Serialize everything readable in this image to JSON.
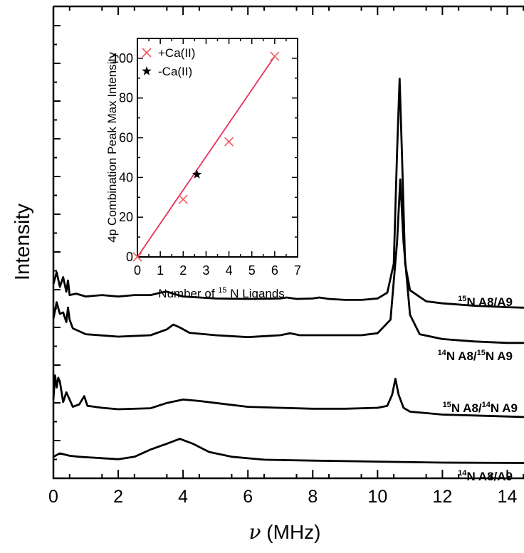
{
  "chart_data": [
    {
      "type": "line",
      "title": "",
      "xlabel_symbol": "ν",
      "xlabel_unit": "(MHz)",
      "ylabel": "Intensity",
      "xlim": [
        0,
        15
      ],
      "x_ticks": [
        0,
        2,
        4,
        6,
        8,
        10,
        12,
        14
      ],
      "y_ticklabels_shown": false,
      "grid": false,
      "series": [
        {
          "label_iso_a": "15",
          "label_text_a": "N A8/A9",
          "label_iso_b": "",
          "label_text_b": "",
          "offset": 3,
          "points": [
            [
              0,
              0.78
            ],
            [
              0.1,
              1.02
            ],
            [
              0.2,
              0.72
            ],
            [
              0.3,
              0.92
            ],
            [
              0.4,
              0.62
            ],
            [
              0.45,
              0.85
            ],
            [
              0.5,
              0.55
            ],
            [
              0.7,
              0.58
            ],
            [
              1,
              0.52
            ],
            [
              1.5,
              0.55
            ],
            [
              2,
              0.52
            ],
            [
              2.5,
              0.55
            ],
            [
              3,
              0.55
            ],
            [
              3.3,
              0.6
            ],
            [
              3.5,
              0.62
            ],
            [
              3.7,
              0.58
            ],
            [
              4,
              0.52
            ],
            [
              4.5,
              0.5
            ],
            [
              5,
              0.48
            ],
            [
              6,
              0.47
            ],
            [
              7,
              0.48
            ],
            [
              7.2,
              0.5
            ],
            [
              7.5,
              0.47
            ],
            [
              8,
              0.48
            ],
            [
              8.2,
              0.5
            ],
            [
              8.5,
              0.47
            ],
            [
              9,
              0.45
            ],
            [
              9.5,
              0.45
            ],
            [
              10,
              0.48
            ],
            [
              10.3,
              0.6
            ],
            [
              10.5,
              1.2
            ],
            [
              10.6,
              3.5
            ],
            [
              10.68,
              5.02
            ],
            [
              10.75,
              3.5
            ],
            [
              10.85,
              1.2
            ],
            [
              11,
              0.65
            ],
            [
              11.5,
              0.42
            ],
            [
              12,
              0.38
            ],
            [
              13,
              0.33
            ],
            [
              14,
              0.3
            ],
            [
              15,
              0.28
            ]
          ]
        },
        {
          "label_iso_a": "14",
          "label_text_a": "N A8/",
          "label_iso_b": "15",
          "label_text_b": "N A9",
          "offset": 2,
          "points": [
            [
              0,
              0.62
            ],
            [
              0.1,
              0.96
            ],
            [
              0.2,
              0.72
            ],
            [
              0.3,
              0.75
            ],
            [
              0.4,
              0.55
            ],
            [
              0.45,
              0.85
            ],
            [
              0.5,
              0.6
            ],
            [
              0.6,
              0.42
            ],
            [
              1,
              0.3
            ],
            [
              2,
              0.25
            ],
            [
              3,
              0.28
            ],
            [
              3.5,
              0.4
            ],
            [
              3.7,
              0.5
            ],
            [
              3.9,
              0.44
            ],
            [
              4.2,
              0.33
            ],
            [
              5,
              0.28
            ],
            [
              6,
              0.24
            ],
            [
              7,
              0.28
            ],
            [
              7.3,
              0.32
            ],
            [
              7.6,
              0.28
            ],
            [
              8.5,
              0.28
            ],
            [
              9.5,
              0.28
            ],
            [
              10,
              0.32
            ],
            [
              10.4,
              0.6
            ],
            [
              10.6,
              2.2
            ],
            [
              10.7,
              3.5
            ],
            [
              10.8,
              2.2
            ],
            [
              11,
              0.7
            ],
            [
              11.3,
              0.3
            ],
            [
              12,
              0.2
            ],
            [
              13,
              0.15
            ],
            [
              14,
              0.12
            ],
            [
              15,
              0.12
            ]
          ]
        },
        {
          "label_iso_a": "15",
          "label_text_a": "N A8/",
          "label_iso_b": "14",
          "label_text_b": "N A9",
          "offset": 1,
          "points": [
            [
              0,
              0.45
            ],
            [
              0.05,
              0.95
            ],
            [
              0.1,
              0.7
            ],
            [
              0.15,
              0.9
            ],
            [
              0.2,
              0.82
            ],
            [
              0.3,
              0.4
            ],
            [
              0.4,
              0.6
            ],
            [
              0.5,
              0.45
            ],
            [
              0.6,
              0.3
            ],
            [
              0.8,
              0.35
            ],
            [
              0.95,
              0.52
            ],
            [
              1.05,
              0.32
            ],
            [
              1.5,
              0.28
            ],
            [
              2,
              0.25
            ],
            [
              3,
              0.27
            ],
            [
              3.5,
              0.38
            ],
            [
              4,
              0.45
            ],
            [
              4.5,
              0.42
            ],
            [
              5,
              0.38
            ],
            [
              6,
              0.3
            ],
            [
              7,
              0.28
            ],
            [
              8,
              0.26
            ],
            [
              9,
              0.26
            ],
            [
              10,
              0.28
            ],
            [
              10.3,
              0.32
            ],
            [
              10.45,
              0.55
            ],
            [
              10.55,
              0.88
            ],
            [
              10.65,
              0.55
            ],
            [
              10.8,
              0.28
            ],
            [
              11,
              0.2
            ],
            [
              12,
              0.14
            ],
            [
              13,
              0.12
            ],
            [
              14,
              0.1
            ],
            [
              15,
              0.08
            ]
          ]
        },
        {
          "label_iso_a": "14",
          "label_text_a": "N A8/A9",
          "label_iso_b": "",
          "label_text_b": "",
          "offset": 0,
          "points": [
            [
              0,
              0.15
            ],
            [
              0.2,
              0.22
            ],
            [
              0.5,
              0.17
            ],
            [
              0.8,
              0.15
            ],
            [
              1.5,
              0.12
            ],
            [
              2,
              0.1
            ],
            [
              2.5,
              0.15
            ],
            [
              3,
              0.3
            ],
            [
              3.5,
              0.42
            ],
            [
              3.9,
              0.52
            ],
            [
              4.3,
              0.42
            ],
            [
              4.8,
              0.25
            ],
            [
              5.5,
              0.15
            ],
            [
              6.5,
              0.09
            ],
            [
              8,
              0.07
            ],
            [
              10,
              0.05
            ],
            [
              12,
              0.03
            ],
            [
              15,
              0.02
            ]
          ]
        }
      ]
    },
    {
      "type": "scatter",
      "title": "",
      "xlabel_prefix": "Number of ",
      "xlabel_iso": "15",
      "xlabel_suffix": " N Ligands",
      "ylabel": "4p Combination Peak Max Intensity",
      "xlim": [
        0,
        7
      ],
      "ylim": [
        0,
        110
      ],
      "x_ticks": [
        0,
        1,
        2,
        3,
        4,
        5,
        6,
        7
      ],
      "y_ticks": [
        0,
        20,
        40,
        60,
        80,
        100
      ],
      "legend_position": "top-left",
      "series": [
        {
          "name": "+Ca(II)",
          "marker": "x",
          "color": "#f25c5c",
          "x": [
            0,
            2,
            4,
            6
          ],
          "y": [
            0,
            29,
            58,
            101
          ]
        },
        {
          "name": "-Ca(II)",
          "marker": "star",
          "color": "#000000",
          "x": [
            2.6
          ],
          "y": [
            41.5
          ]
        }
      ],
      "fit_line": {
        "x": [
          0,
          6
        ],
        "y": [
          0,
          101
        ],
        "color": "#e8305a"
      }
    }
  ]
}
